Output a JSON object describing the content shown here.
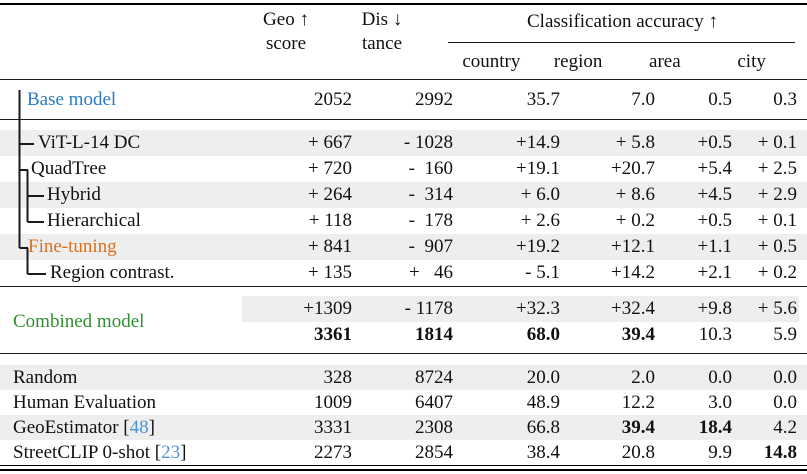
{
  "header": {
    "geo_line1": "Geo ↑",
    "geo_line2": "score",
    "dis_line1": "Dis ↓",
    "dis_line2": "tance",
    "classification": "Classification accuracy ↑",
    "sub_columns": [
      "country",
      "region",
      "area",
      "city"
    ]
  },
  "colors": {
    "base_model": "#2b7ac7",
    "fine_tuning": "#d8731a",
    "combined_model": "#2f8f2f",
    "citation": "#4e93d4",
    "row_shade": "#eeeeee"
  },
  "combined_label": "Combined model",
  "sections": [
    {
      "name": "base",
      "rows": [
        {
          "name": "base-model",
          "label": "Base model",
          "cite": null,
          "indent": 27,
          "shade": false,
          "color_key": "base_model",
          "bold": [],
          "tall": true,
          "cells": [
            "2052",
            "2992",
            "35.7",
            "7.0",
            "0.5",
            "0.3"
          ]
        }
      ]
    },
    {
      "name": "ablations",
      "rows": [
        {
          "name": "vit-l-14-dc",
          "label": "ViT-L-14 DC",
          "cite": null,
          "indent": 38,
          "shade": true,
          "color_key": null,
          "bold": [],
          "cells": [
            "+ 667",
            "- 1028",
            "+14.9",
            "+ 5.8",
            "+0.5",
            "+ 0.1"
          ]
        },
        {
          "name": "quadtree",
          "label": "QuadTree",
          "cite": null,
          "indent": 31,
          "shade": false,
          "color_key": null,
          "bold": [],
          "cells": [
            "+ 720",
            "-  160",
            "+19.1",
            "+20.7",
            "+5.4",
            "+ 2.5"
          ]
        },
        {
          "name": "hybrid",
          "label": "Hybrid",
          "cite": null,
          "indent": 47,
          "shade": true,
          "color_key": null,
          "bold": [],
          "cells": [
            "+ 264",
            "-  314",
            "+ 6.0",
            "+ 8.6",
            "+4.5",
            "+ 2.9"
          ]
        },
        {
          "name": "hierarchical",
          "label": "Hierarchical",
          "cite": null,
          "indent": 47,
          "shade": false,
          "color_key": null,
          "bold": [],
          "cells": [
            "+ 118",
            "-  178",
            "+ 2.6",
            "+ 0.2",
            "+0.5",
            "+ 0.1"
          ]
        },
        {
          "name": "fine-tuning",
          "label": "Fine-tuning",
          "cite": null,
          "indent": 28,
          "shade": true,
          "color_key": "fine_tuning",
          "bold": [],
          "cells": [
            "+ 841",
            "-  907",
            "+19.2",
            "+12.1",
            "+1.1",
            "+ 0.5"
          ]
        },
        {
          "name": "region-contrast",
          "label": "Region contrast.",
          "cite": null,
          "indent": 50,
          "shade": false,
          "color_key": null,
          "bold": [],
          "cells": [
            "+ 135",
            "+   46",
            "- 5.1",
            "+14.2",
            "+2.1",
            "+ 0.2"
          ]
        }
      ]
    },
    {
      "name": "combined",
      "rows": [
        {
          "name": "combined-delta",
          "label": "",
          "cite": null,
          "indent": 13,
          "shade": "partial",
          "color_key": null,
          "bold": [],
          "cells": [
            "+1309",
            "- 1178",
            "+32.3",
            "+32.4",
            "+9.8",
            "+ 5.6"
          ]
        },
        {
          "name": "combined-total",
          "label": "",
          "cite": null,
          "indent": 13,
          "shade": false,
          "color_key": null,
          "bold": [
            0,
            1,
            2,
            3
          ],
          "cells": [
            "3361",
            "1814",
            "68.0",
            "39.4",
            "10.3",
            "5.9"
          ]
        }
      ]
    },
    {
      "name": "baselines",
      "rows": [
        {
          "name": "random",
          "label": "Random",
          "cite": null,
          "indent": 13,
          "shade": true,
          "color_key": null,
          "bold": [],
          "short": true,
          "cells": [
            "328",
            "8724",
            "20.0",
            "2.0",
            "0.0",
            "0.0"
          ]
        },
        {
          "name": "human-evaluation",
          "label": "Human Evaluation",
          "cite": null,
          "indent": 13,
          "shade": false,
          "color_key": null,
          "bold": [],
          "short": true,
          "cells": [
            "1009",
            "6407",
            "48.9",
            "12.2",
            "3.0",
            "0.0"
          ]
        },
        {
          "name": "geoestimator",
          "label": "GeoEstimator ",
          "cite": "48",
          "indent": 13,
          "shade": true,
          "color_key": null,
          "bold": [
            3,
            4
          ],
          "short": true,
          "cells": [
            "3331",
            "2308",
            "66.8",
            "39.4",
            "18.4",
            "4.2"
          ]
        },
        {
          "name": "streetclip-0-shot",
          "label": "StreetCLIP 0-shot ",
          "cite": "23",
          "indent": 13,
          "shade": false,
          "color_key": null,
          "bold": [
            5
          ],
          "short": true,
          "cells": [
            "2273",
            "2854",
            "38.4",
            "20.8",
            "9.9",
            "14.8"
          ]
        }
      ]
    }
  ]
}
